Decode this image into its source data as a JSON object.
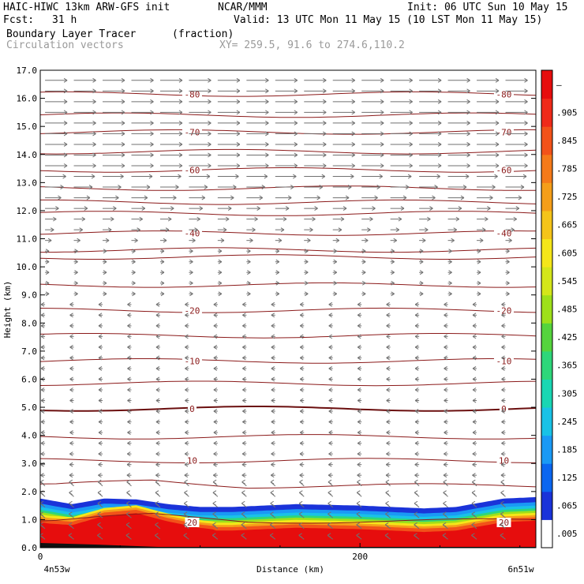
{
  "header": {
    "model": "HAIC-HIWC 13km ARW-GFS init",
    "org": "NCAR/MMM",
    "init": "Init: 06 UTC Sun 10 May 15",
    "fcst_label": "Fcst:",
    "fcst_value": "31 h",
    "valid": "Valid: 13 UTC Mon 11 May 15 (10 LST Mon 11 May 15)",
    "field": "Boundary Layer Tracer",
    "units": "(fraction)",
    "vectors": "Circulation vectors",
    "xy": "XY= 259.5, 91.6 to 274.6,110.2"
  },
  "chart_data": {
    "type": "heatmap",
    "title": "Boundary Layer Tracer",
    "xlabel": "Distance (km)",
    "ylabel": "Height (km)",
    "xlim": [
      0,
      310
    ],
    "ylim": [
      0,
      17
    ],
    "x_tick_labels": [
      "0",
      "200"
    ],
    "x_end_labels": [
      "4n53w",
      "6n51w"
    ],
    "y_ticks": [
      0.0,
      1.0,
      2.0,
      3.0,
      4.0,
      5.0,
      6.0,
      7.0,
      8.0,
      9.0,
      10.0,
      11.0,
      12.0,
      13.0,
      14.0,
      15.0,
      16.0,
      17.0
    ],
    "y_tick_labels": [
      "0.0",
      "1.0",
      "2.0",
      "3.0",
      "4.0",
      "5.0",
      "6.0",
      "7.0",
      "8.0",
      "9.0",
      "10.0",
      "11.0",
      "12.0",
      "13.0",
      "14.0",
      "15.0",
      "16.0",
      "17.0"
    ],
    "colorbar": {
      "labels": [
        ".005",
        ".065",
        ".125",
        ".185",
        ".245",
        ".305",
        ".365",
        ".425",
        ".485",
        ".545",
        ".605",
        ".665",
        ".725",
        ".785",
        ".845",
        ".905",
        "–"
      ],
      "colors": [
        "#ffffff",
        "#1a33d9",
        "#0b66f0",
        "#1a99f5",
        "#19c2e6",
        "#19d6b3",
        "#2ed67a",
        "#55d43d",
        "#9ee01a",
        "#d4e61a",
        "#f5e619",
        "#f5c419",
        "#f59e19",
        "#f57a19",
        "#f25219",
        "#ef2a19",
        "#e60d0d"
      ]
    },
    "tracer_top_km": {
      "x": [
        0,
        20,
        40,
        60,
        80,
        100,
        120,
        160,
        200,
        240,
        260,
        290,
        310
      ],
      "y": [
        1.75,
        1.55,
        1.75,
        1.72,
        1.55,
        1.45,
        1.45,
        1.55,
        1.5,
        1.4,
        1.45,
        1.75,
        1.8
      ]
    },
    "temperature_contours": [
      {
        "label": "20",
        "y": 0.9
      },
      {
        "label": "10",
        "y": 3.1
      },
      {
        "label": "0",
        "y": 4.95
      },
      {
        "label": "-10",
        "y": 6.65
      },
      {
        "label": "-20",
        "y": 8.45
      },
      {
        "label": "-40",
        "y": 11.2
      },
      {
        "label": "-60",
        "y": 13.45
      },
      {
        "label": "-70",
        "y": 14.8
      },
      {
        "label": "-80",
        "y": 16.15
      }
    ]
  }
}
